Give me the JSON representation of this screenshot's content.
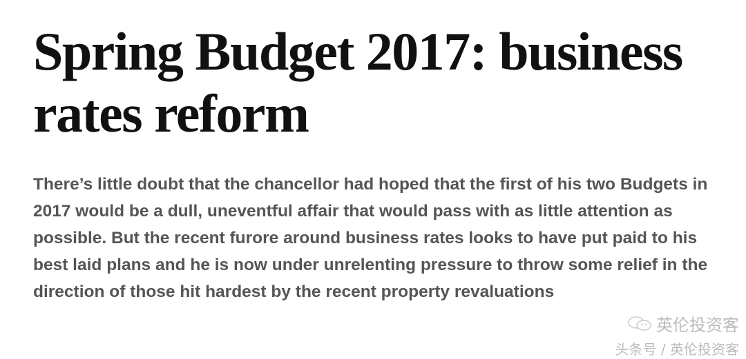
{
  "article": {
    "title": "Spring Budget 2017: business rates reform",
    "lede": "There’s little doubt that the chancellor had hoped that the first of his two Budgets in 2017 would be a dull, uneventful affair that would pass with as little attention as possible. But the recent furore around business rates looks to have put paid to his best laid plans and he is now under unrelenting pressure to throw some relief in the direction of those hit hardest by the recent property revaluations"
  },
  "watermark": {
    "icon": "wechat-icon",
    "line1": "英伦投资客",
    "line2": "头条号 / 英伦投资客"
  }
}
